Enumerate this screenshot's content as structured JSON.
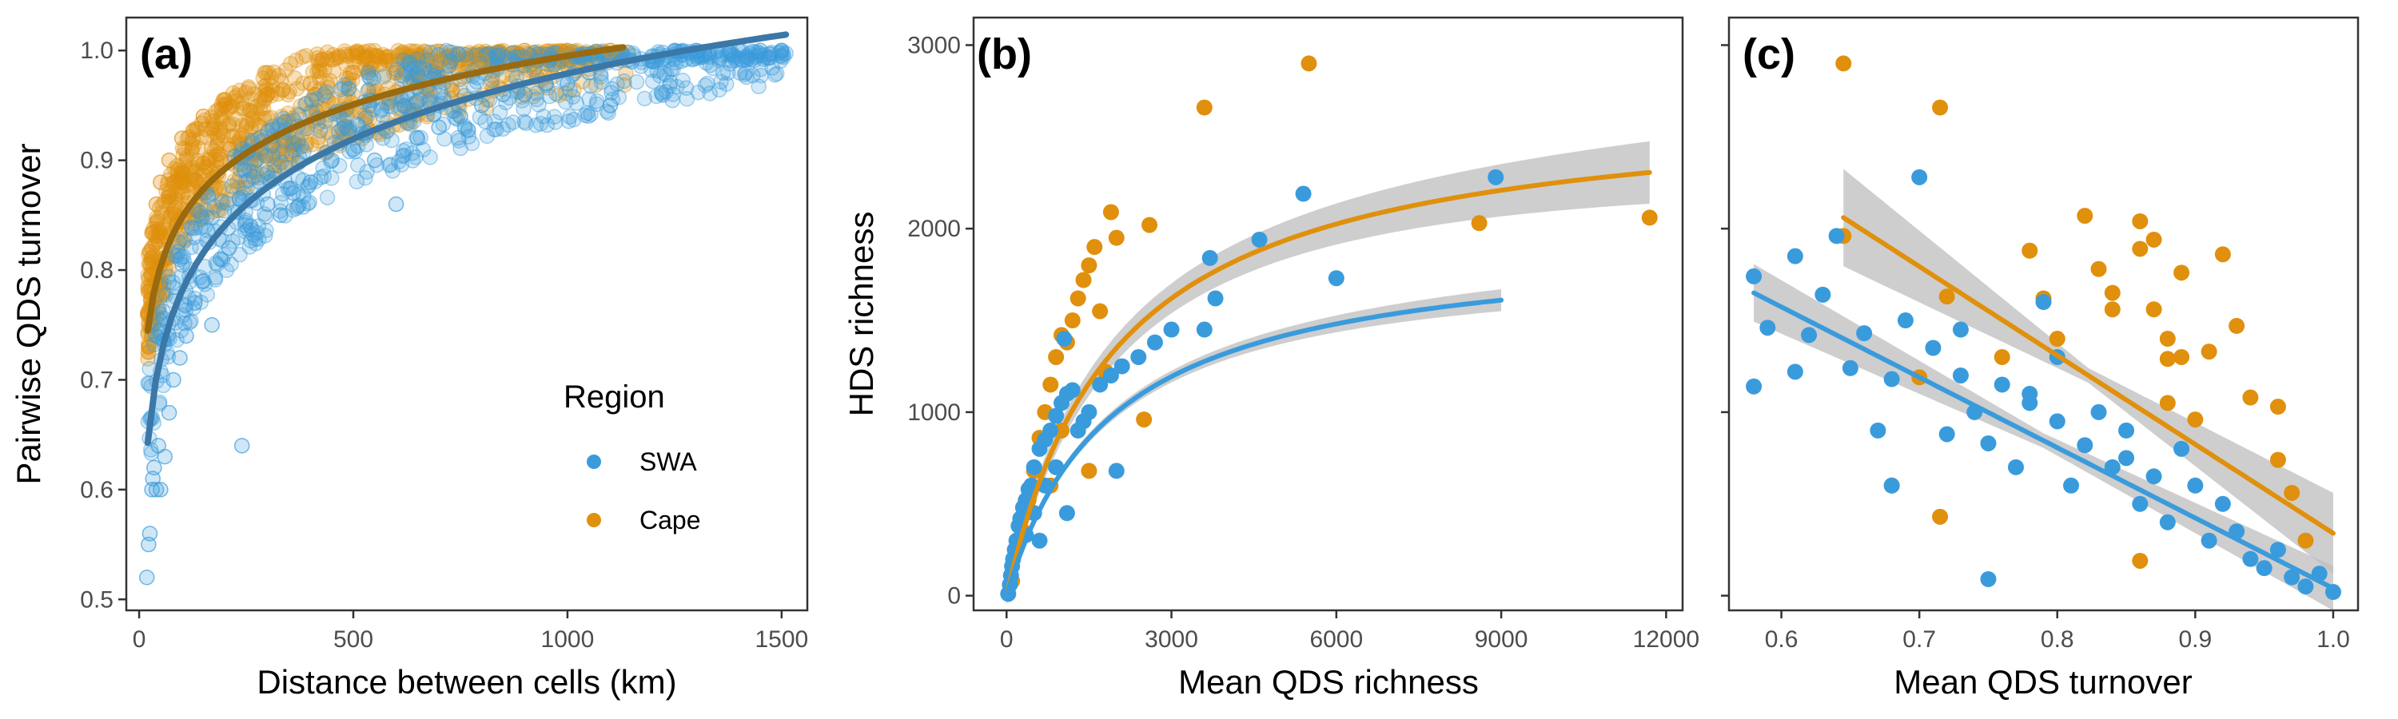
{
  "colors": {
    "swa": "#3a9bdc",
    "cape": "#e0900c",
    "swa_fit_a": "#3b78a8",
    "cape_fit_a": "#9a6a10",
    "ribbon": "#bdbdbd"
  },
  "legend": {
    "title": "Region",
    "items": [
      {
        "label": "SWA",
        "color": "#3a9bdc"
      },
      {
        "label": "Cape",
        "color": "#e0900c"
      }
    ]
  },
  "chart_data": [
    {
      "panel": "(a)",
      "type": "scatter",
      "xlabel": "Distance between cells (km)",
      "ylabel": "Pairwise QDS turnover",
      "xlim": [
        -30,
        1560
      ],
      "ylim": [
        0.49,
        1.03
      ],
      "xticks": [
        0,
        500,
        1000,
        1500
      ],
      "yticks": [
        0.5,
        0.6,
        0.7,
        0.8,
        0.9,
        1.0
      ],
      "ytick_labels": [
        "0.5",
        "0.6",
        "0.7",
        "0.8",
        "0.9",
        "1.0"
      ],
      "series": [
        {
          "name": "SWA",
          "fit": {
            "model": "log",
            "a": 0.385,
            "b": 0.086,
            "x": [
              20,
              1510
            ]
          },
          "points": [
            [
              18,
              0.52
            ],
            [
              22,
              0.55
            ],
            [
              25,
              0.56
            ],
            [
              30,
              0.6
            ],
            [
              32,
              0.61
            ],
            [
              35,
              0.62
            ],
            [
              40,
              0.6
            ],
            [
              45,
              0.64
            ],
            [
              50,
              0.6
            ],
            [
              60,
              0.63
            ],
            [
              70,
              0.67
            ],
            [
              80,
              0.7
            ],
            [
              95,
              0.72
            ],
            [
              110,
              0.74
            ],
            [
              130,
              0.77
            ],
            [
              150,
              0.79
            ],
            [
              170,
              0.75
            ],
            [
              190,
              0.81
            ],
            [
              210,
              0.82
            ],
            [
              240,
              0.64
            ],
            [
              260,
              0.84
            ],
            [
              300,
              0.86
            ],
            [
              330,
              0.85
            ],
            [
              360,
              0.87
            ],
            [
              400,
              0.88
            ],
            [
              450,
              0.9
            ],
            [
              500,
              0.91
            ],
            [
              550,
              0.9
            ],
            [
              600,
              0.86
            ],
            [
              650,
              0.92
            ],
            [
              700,
              0.93
            ],
            [
              750,
              0.94
            ],
            [
              800,
              0.95
            ],
            [
              850,
              0.96
            ],
            [
              900,
              0.96
            ],
            [
              950,
              0.97
            ],
            [
              1000,
              0.97
            ],
            [
              1050,
              0.98
            ],
            [
              1100,
              0.95
            ],
            [
              1150,
              0.99
            ],
            [
              1200,
              0.99
            ],
            [
              1250,
              1.0
            ],
            [
              1300,
              1.0
            ],
            [
              1350,
              1.0
            ],
            [
              1400,
              1.0
            ],
            [
              1450,
              1.0
            ],
            [
              1500,
              1.0
            ]
          ]
        },
        {
          "name": "Cape",
          "fit": {
            "model": "log",
            "a": 0.553,
            "b": 0.064,
            "x": [
              20,
              1130
            ]
          },
          "points": [
            [
              20,
              0.76
            ],
            [
              30,
              0.82
            ],
            [
              40,
              0.86
            ],
            [
              50,
              0.88
            ],
            [
              70,
              0.9
            ],
            [
              100,
              0.92
            ],
            [
              150,
              0.94
            ],
            [
              200,
              0.95
            ],
            [
              300,
              0.96
            ],
            [
              400,
              0.97
            ],
            [
              500,
              0.98
            ],
            [
              600,
              0.98
            ],
            [
              700,
              0.99
            ],
            [
              800,
              0.99
            ],
            [
              900,
              1.0
            ],
            [
              1000,
              1.0
            ],
            [
              1100,
              1.0
            ]
          ]
        }
      ]
    },
    {
      "panel": "(b)",
      "type": "scatter",
      "xlabel": "Mean QDS richness",
      "ylabel": "HDS richness",
      "xlim": [
        -600,
        12300
      ],
      "ylim": [
        -80,
        3150
      ],
      "xticks": [
        0,
        3000,
        6000,
        9000,
        12000
      ],
      "yticks": [
        0,
        1000,
        2000,
        3000
      ],
      "series": [
        {
          "name": "SWA",
          "fit": {
            "model": "sat",
            "A": 1950,
            "K": 1900,
            "x": [
              0,
              9000
            ],
            "band": 60
          },
          "points": [
            [
              30,
              10
            ],
            [
              60,
              60
            ],
            [
              80,
              110
            ],
            [
              100,
              160
            ],
            [
              120,
              200
            ],
            [
              150,
              250
            ],
            [
              180,
              300
            ],
            [
              220,
              380
            ],
            [
              250,
              420
            ],
            [
              300,
              480
            ],
            [
              350,
              520
            ],
            [
              400,
              580
            ],
            [
              450,
              600
            ],
            [
              500,
              700
            ],
            [
              600,
              800
            ],
            [
              700,
              850
            ],
            [
              800,
              900
            ],
            [
              900,
              980
            ],
            [
              1000,
              1050
            ],
            [
              1100,
              1100
            ],
            [
              1200,
              1120
            ],
            [
              1300,
              900
            ],
            [
              1400,
              950
            ],
            [
              1500,
              1000
            ],
            [
              1700,
              1150
            ],
            [
              1900,
              1200
            ],
            [
              2000,
              680
            ],
            [
              2100,
              1250
            ],
            [
              2400,
              1300
            ],
            [
              2700,
              1380
            ],
            [
              3000,
              1450
            ],
            [
              3600,
              1450
            ],
            [
              3800,
              1620
            ],
            [
              3700,
              1840
            ],
            [
              4600,
              1940
            ],
            [
              5400,
              2190
            ],
            [
              6000,
              1730
            ],
            [
              8900,
              2280
            ],
            [
              350,
              330
            ],
            [
              500,
              450
            ],
            [
              700,
              600
            ],
            [
              900,
              700
            ],
            [
              1100,
              450
            ],
            [
              600,
              300
            ],
            [
              1050,
              1400
            ]
          ]
        },
        {
          "name": "Cape",
          "fit": {
            "model": "sat",
            "A": 2700,
            "K": 2000,
            "x": [
              0,
              11700
            ],
            "band": 170
          },
          "points": [
            [
              100,
              80
            ],
            [
              200,
              300
            ],
            [
              300,
              350
            ],
            [
              400,
              520
            ],
            [
              500,
              680
            ],
            [
              600,
              860
            ],
            [
              700,
              1000
            ],
            [
              800,
              1150
            ],
            [
              900,
              1300
            ],
            [
              1000,
              1420
            ],
            [
              1100,
              1380
            ],
            [
              1200,
              1500
            ],
            [
              1300,
              1620
            ],
            [
              1400,
              1720
            ],
            [
              1500,
              1800
            ],
            [
              1600,
              1900
            ],
            [
              1700,
              1550
            ],
            [
              1800,
              1220
            ],
            [
              1900,
              2090
            ],
            [
              2000,
              1950
            ],
            [
              2600,
              2020
            ],
            [
              2500,
              960
            ],
            [
              3600,
              2660
            ],
            [
              5500,
              2900
            ],
            [
              8600,
              2030
            ],
            [
              11700,
              2060
            ],
            [
              800,
              600
            ],
            [
              1500,
              680
            ],
            [
              1000,
              900
            ]
          ]
        }
      ]
    },
    {
      "panel": "(c)",
      "type": "scatter",
      "xlabel": "Mean QDS turnover",
      "ylabel": "",
      "xlim": [
        0.562,
        1.018
      ],
      "ylim": [
        -80,
        3150
      ],
      "xticks": [
        0.6,
        0.7,
        0.8,
        0.9,
        1.0
      ],
      "xtick_labels": [
        "0.6",
        "0.7",
        "0.8",
        "0.9",
        "1.0"
      ],
      "yticks": [
        0,
        1000,
        2000,
        3000
      ],
      "series": [
        {
          "name": "SWA",
          "fit": {
            "model": "linear",
            "x": [
              0.58,
              1.0
            ],
            "y": [
              1650,
              40
            ],
            "band": [
              130,
              90
            ]
          },
          "points": [
            [
              0.58,
              1740
            ],
            [
              0.58,
              1140
            ],
            [
              0.59,
              1460
            ],
            [
              0.61,
              1850
            ],
            [
              0.61,
              1220
            ],
            [
              0.62,
              1420
            ],
            [
              0.64,
              1960
            ],
            [
              0.65,
              1240
            ],
            [
              0.66,
              1430
            ],
            [
              0.67,
              900
            ],
            [
              0.68,
              600
            ],
            [
              0.69,
              1500
            ],
            [
              0.7,
              2280
            ],
            [
              0.71,
              1350
            ],
            [
              0.72,
              880
            ],
            [
              0.73,
              1200
            ],
            [
              0.74,
              1000
            ],
            [
              0.75,
              830
            ],
            [
              0.75,
              90
            ],
            [
              0.76,
              1150
            ],
            [
              0.77,
              700
            ],
            [
              0.78,
              1100
            ],
            [
              0.79,
              1600
            ],
            [
              0.8,
              950
            ],
            [
              0.81,
              600
            ],
            [
              0.82,
              820
            ],
            [
              0.83,
              1000
            ],
            [
              0.84,
              700
            ],
            [
              0.85,
              900
            ],
            [
              0.86,
              500
            ],
            [
              0.87,
              650
            ],
            [
              0.88,
              400
            ],
            [
              0.89,
              800
            ],
            [
              0.9,
              600
            ],
            [
              0.91,
              300
            ],
            [
              0.92,
              500
            ],
            [
              0.93,
              350
            ],
            [
              0.94,
              200
            ],
            [
              0.95,
              150
            ],
            [
              0.96,
              250
            ],
            [
              0.97,
              100
            ],
            [
              0.98,
              50
            ],
            [
              0.99,
              120
            ],
            [
              1.0,
              20
            ],
            [
              0.8,
              1300
            ],
            [
              0.78,
              1050
            ],
            [
              0.85,
              750
            ],
            [
              0.73,
              1450
            ],
            [
              0.68,
              1180
            ],
            [
              0.63,
              1640
            ]
          ]
        },
        {
          "name": "Cape",
          "fit": {
            "model": "linear",
            "x": [
              0.645,
              1.0
            ],
            "y": [
              2060,
              340
            ],
            "band": [
              250,
              200
            ]
          },
          "points": [
            [
              0.645,
              2900
            ],
            [
              0.645,
              1960
            ],
            [
              0.715,
              2660
            ],
            [
              0.715,
              430
            ],
            [
              0.68,
              600
            ],
            [
              0.7,
              1190
            ],
            [
              0.72,
              1630
            ],
            [
              0.76,
              1300
            ],
            [
              0.78,
              1880
            ],
            [
              0.79,
              1620
            ],
            [
              0.8,
              1400
            ],
            [
              0.82,
              2070
            ],
            [
              0.83,
              1780
            ],
            [
              0.84,
              1650
            ],
            [
              0.86,
              2040
            ],
            [
              0.86,
              1890
            ],
            [
              0.87,
              1940
            ],
            [
              0.87,
              1560
            ],
            [
              0.88,
              1400
            ],
            [
              0.88,
              1050
            ],
            [
              0.88,
              1290
            ],
            [
              0.89,
              1760
            ],
            [
              0.9,
              960
            ],
            [
              0.91,
              1330
            ],
            [
              0.92,
              1860
            ],
            [
              0.93,
              1470
            ],
            [
              0.94,
              1080
            ],
            [
              0.96,
              1030
            ],
            [
              0.96,
              740
            ],
            [
              0.97,
              560
            ],
            [
              0.98,
              300
            ],
            [
              0.86,
              190
            ],
            [
              0.84,
              1560
            ],
            [
              0.89,
              1300
            ]
          ]
        }
      ]
    }
  ]
}
